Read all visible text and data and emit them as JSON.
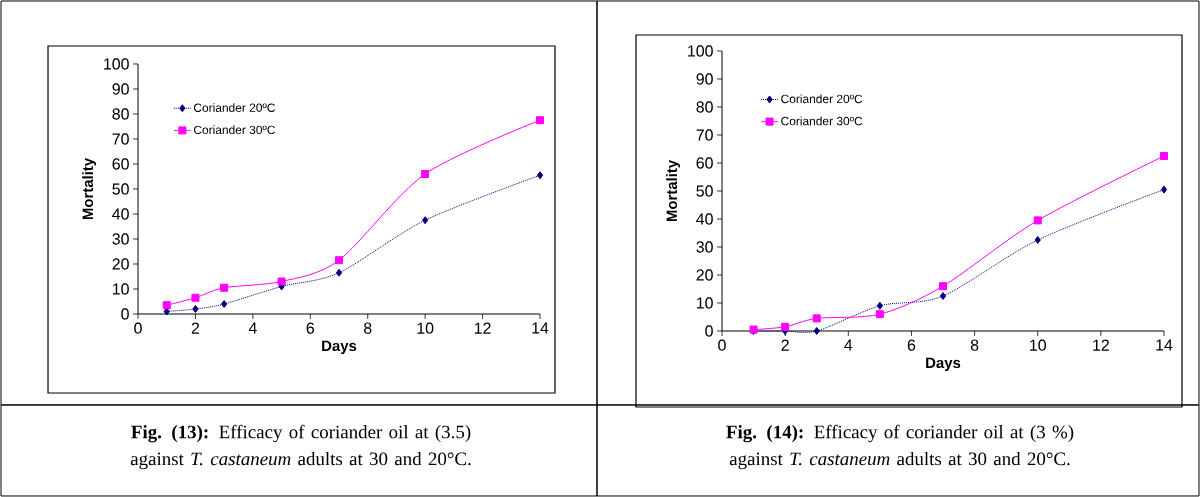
{
  "chart_data": [
    {
      "type": "line",
      "title": "**Fig. (13):** Efficacy of coriander oil at (3.5) against *T. castaneum* adults at 30 and 20°C.",
      "xlabel": "Days",
      "ylabel": "Mortality",
      "x": [
        1,
        2,
        3,
        5,
        7,
        10,
        14
      ],
      "series": [
        {
          "name": "Coriander 20ºC",
          "color": "#000080",
          "values": [
            1,
            2,
            4,
            11,
            16.5,
            37.5,
            55.5
          ],
          "line_style": "dotted",
          "marker": "diamond"
        },
        {
          "name": "Coriander 30ºC",
          "color": "#ff00ff",
          "values": [
            3.5,
            6.5,
            10.5,
            13,
            21.5,
            56,
            77.5
          ],
          "line_style": "solid",
          "marker": "square"
        }
      ],
      "xlim": [
        0,
        14
      ],
      "ylim": [
        0,
        100
      ],
      "xticks": [
        0,
        2,
        4,
        6,
        8,
        10,
        12,
        14
      ],
      "yticks": [
        0,
        10,
        20,
        30,
        40,
        50,
        60,
        70,
        80,
        90,
        100
      ],
      "legend": "top left"
    },
    {
      "type": "line",
      "title": "**Fig. (14):** Efficacy of coriander oil at (3 %) against *T. castaneum* adults at 30 and 20°C.",
      "xlabel": "Days",
      "ylabel": "Mortality",
      "x": [
        1,
        2,
        3,
        5,
        7,
        10,
        14
      ],
      "series": [
        {
          "name": "Coriander 20ºC",
          "color": "#000080",
          "values": [
            0,
            0,
            0,
            9,
            12.5,
            32.5,
            50.5
          ],
          "line_style": "dotted",
          "marker": "diamond"
        },
        {
          "name": "Coriander 30ºC",
          "color": "#ff00ff",
          "values": [
            0.5,
            1.5,
            4.5,
            6,
            16,
            39.5,
            62.5
          ],
          "line_style": "solid",
          "marker": "square"
        }
      ],
      "xlim": [
        0,
        14
      ],
      "ylim": [
        0,
        100
      ],
      "xticks": [
        0,
        2,
        4,
        6,
        8,
        10,
        12,
        14
      ],
      "yticks": [
        0,
        10,
        20,
        30,
        40,
        50,
        60,
        70,
        80,
        90,
        100
      ],
      "legend": "top left"
    }
  ]
}
